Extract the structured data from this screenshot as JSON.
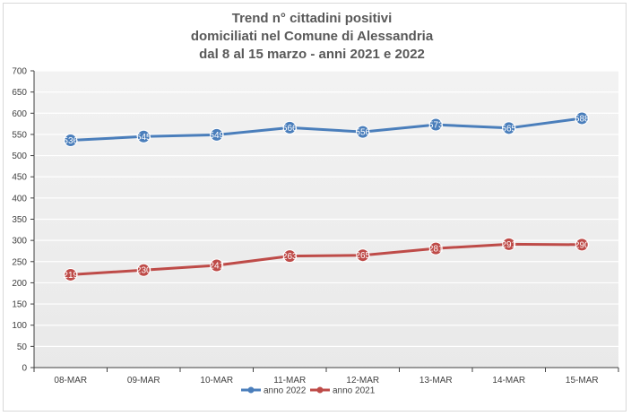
{
  "chart_data": {
    "type": "line",
    "title": [
      "Trend n° cittadini positivi",
      "domiciliati nel Comune di Alessandria",
      "dal 8 al 15 marzo - anni 2021 e 2022"
    ],
    "categories": [
      "08-MAR",
      "09-MAR",
      "10-MAR",
      "11-MAR",
      "12-MAR",
      "13-MAR",
      "14-MAR",
      "15-MAR"
    ],
    "ylim": [
      0,
      700
    ],
    "yticks": [
      0,
      50,
      100,
      150,
      200,
      250,
      300,
      350,
      400,
      450,
      500,
      550,
      600,
      650,
      700
    ],
    "grid": true,
    "legend_position": "bottom",
    "series": [
      {
        "name": "anno 2022",
        "color": "#4a7ebb",
        "values": [
          536,
          545,
          549,
          566,
          556,
          573,
          565,
          588
        ]
      },
      {
        "name": "anno 2021",
        "color": "#be4b48",
        "values": [
          219,
          230,
          241,
          263,
          265,
          281,
          291,
          290
        ]
      }
    ]
  }
}
